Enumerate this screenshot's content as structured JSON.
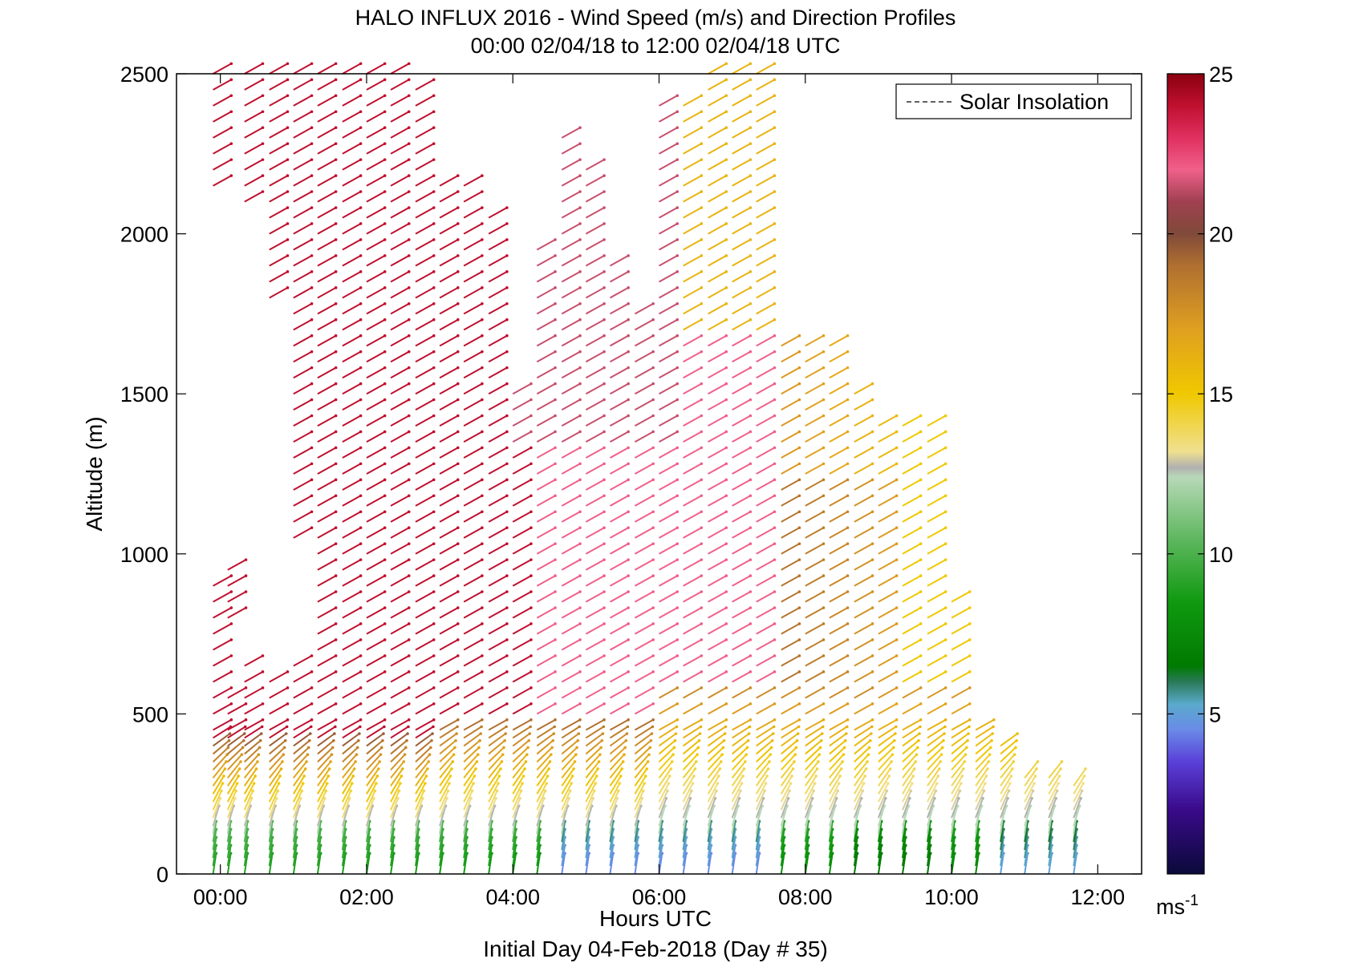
{
  "chart_data": {
    "type": "barbs",
    "title": "HALO INFLUX 2016 - Wind Speed (m/s) and Direction Profiles",
    "subtitle": "00:00 02/04/18 to 12:00 02/04/18  UTC",
    "xlabel": "Hours UTC",
    "xlabel2": "Initial Day 04-Feb-2018 (Day # 35)",
    "ylabel": "Altitude (m)",
    "xlim": [
      -0.6,
      12.6
    ],
    "ylim": [
      0,
      2500
    ],
    "x_ticks": [
      0,
      2,
      4,
      6,
      8,
      10,
      12
    ],
    "x_tick_labels": [
      "00:00",
      "02:00",
      "04:00",
      "06:00",
      "08:00",
      "10:00",
      "12:00"
    ],
    "y_ticks": [
      0,
      500,
      1000,
      1500,
      2000,
      2500
    ],
    "y_tick_labels": [
      "0",
      "500",
      "1000",
      "1500",
      "2000",
      "2500"
    ],
    "legend": {
      "label": "Solar Insolation",
      "placement": "top-right",
      "line_style": "dashed"
    },
    "colorbar": {
      "min": 0,
      "max": 25,
      "ticks": [
        5,
        10,
        15,
        20,
        25
      ],
      "tick_labels": [
        "5",
        "10",
        "15",
        "20",
        "25"
      ],
      "unit_label": "ms",
      "unit_exp": "-1",
      "stops": [
        {
          "v": 0,
          "c": "#0a0a3a"
        },
        {
          "v": 2,
          "c": "#3a0a8a"
        },
        {
          "v": 3.5,
          "c": "#5a40d8"
        },
        {
          "v": 4.5,
          "c": "#6a8ae8"
        },
        {
          "v": 5.3,
          "c": "#5aaacc"
        },
        {
          "v": 6.0,
          "c": "#2a7a5a"
        },
        {
          "v": 6.5,
          "c": "#007a00"
        },
        {
          "v": 8.5,
          "c": "#109a10"
        },
        {
          "v": 10.5,
          "c": "#60b860"
        },
        {
          "v": 12.4,
          "c": "#b8d8b8"
        },
        {
          "v": 12.7,
          "c": "#b0b0b0"
        },
        {
          "v": 13.2,
          "c": "#f0e090"
        },
        {
          "v": 15,
          "c": "#f0c800"
        },
        {
          "v": 17,
          "c": "#e0a020"
        },
        {
          "v": 19,
          "c": "#b07030"
        },
        {
          "v": 20,
          "c": "#804a3a"
        },
        {
          "v": 21,
          "c": "#a04050"
        },
        {
          "v": 22,
          "c": "#f0608a"
        },
        {
          "v": 23,
          "c": "#e03060"
        },
        {
          "v": 24,
          "c": "#c01030"
        },
        {
          "v": 25,
          "c": "#8a0010"
        }
      ]
    },
    "profile_time_step_hours": 0.33,
    "profiles": [
      {
        "t": -0.1,
        "top": 2500,
        "bottom": 0,
        "gaps": [
          [
            900,
            2150
          ]
        ]
      },
      {
        "t": 0.1,
        "top": 980,
        "bottom": 0,
        "gaps": [
          [
            560,
            760
          ]
        ]
      },
      {
        "t": 0.33,
        "top": 2500,
        "bottom": 0,
        "gaps": [
          [
            660,
            2100
          ],
          [
            990,
            2100
          ]
        ]
      },
      {
        "t": 0.67,
        "top": 2500,
        "bottom": 0,
        "gaps": [
          [
            620,
            1800
          ]
        ]
      },
      {
        "t": 1.0,
        "top": 2500,
        "bottom": 0,
        "gaps": [
          [
            660,
            1050
          ]
        ]
      },
      {
        "t": 1.33,
        "top": 2500,
        "bottom": 0,
        "gaps": []
      },
      {
        "t": 1.67,
        "top": 2500,
        "bottom": 0,
        "gaps": []
      },
      {
        "t": 2.0,
        "top": 2500,
        "bottom": 0,
        "gaps": []
      },
      {
        "t": 2.33,
        "top": 2500,
        "bottom": 0,
        "gaps": []
      },
      {
        "t": 2.67,
        "top": 2450,
        "bottom": 0,
        "gaps": []
      },
      {
        "t": 3.0,
        "top": 2180,
        "bottom": 0,
        "gaps": []
      },
      {
        "t": 3.33,
        "top": 2180,
        "bottom": 0,
        "gaps": []
      },
      {
        "t": 3.67,
        "top": 2090,
        "bottom": 0,
        "gaps": []
      },
      {
        "t": 4.0,
        "top": 1500,
        "bottom": 0,
        "gaps": []
      },
      {
        "t": 4.33,
        "top": 1950,
        "bottom": 0,
        "gaps": []
      },
      {
        "t": 4.67,
        "top": 2330,
        "bottom": 0,
        "gaps": []
      },
      {
        "t": 5.0,
        "top": 2240,
        "bottom": 0,
        "gaps": []
      },
      {
        "t": 5.33,
        "top": 1920,
        "bottom": 0,
        "gaps": []
      },
      {
        "t": 5.67,
        "top": 1780,
        "bottom": 0,
        "gaps": []
      },
      {
        "t": 6.0,
        "top": 2400,
        "bottom": 0,
        "gaps": []
      },
      {
        "t": 6.33,
        "top": 2400,
        "bottom": 0,
        "gaps": []
      },
      {
        "t": 6.67,
        "top": 2500,
        "bottom": 0,
        "gaps": []
      },
      {
        "t": 7.0,
        "top": 2500,
        "bottom": 0,
        "gaps": []
      },
      {
        "t": 7.33,
        "top": 2500,
        "bottom": 0,
        "gaps": []
      },
      {
        "t": 7.67,
        "top": 1660,
        "bottom": 0,
        "gaps": []
      },
      {
        "t": 8.0,
        "top": 1660,
        "bottom": 0,
        "gaps": []
      },
      {
        "t": 8.33,
        "top": 1660,
        "bottom": 0,
        "gaps": []
      },
      {
        "t": 8.67,
        "top": 1540,
        "bottom": 0,
        "gaps": []
      },
      {
        "t": 9.0,
        "top": 1420,
        "bottom": 0,
        "gaps": []
      },
      {
        "t": 9.33,
        "top": 1410,
        "bottom": 0,
        "gaps": []
      },
      {
        "t": 9.67,
        "top": 1400,
        "bottom": 0,
        "gaps": []
      },
      {
        "t": 10.0,
        "top": 880,
        "bottom": 0,
        "gaps": []
      },
      {
        "t": 10.33,
        "top": 460,
        "bottom": 0,
        "gaps": []
      },
      {
        "t": 10.67,
        "top": 420,
        "bottom": 0,
        "gaps": []
      },
      {
        "t": 11.0,
        "top": 320,
        "bottom": 0,
        "gaps": []
      },
      {
        "t": 11.33,
        "top": 320,
        "bottom": 0,
        "gaps": []
      },
      {
        "t": 11.67,
        "top": 290,
        "bottom": 0,
        "gaps": []
      }
    ]
  }
}
